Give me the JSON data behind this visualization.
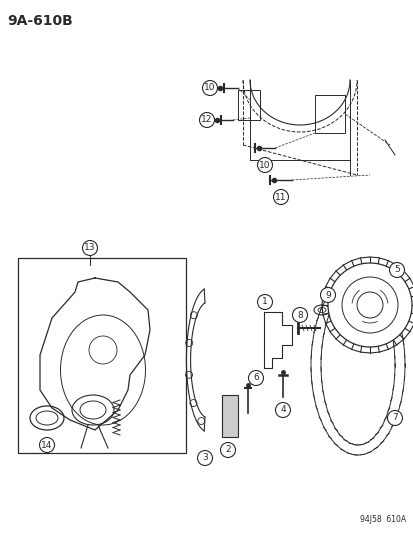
{
  "title": "9A-610B",
  "footer": "94J58  610A",
  "bg_color": "#ffffff",
  "line_color": "#2a2a2a",
  "text_color": "#2a2a2a",
  "fig_width": 4.14,
  "fig_height": 5.33,
  "dpi": 100
}
